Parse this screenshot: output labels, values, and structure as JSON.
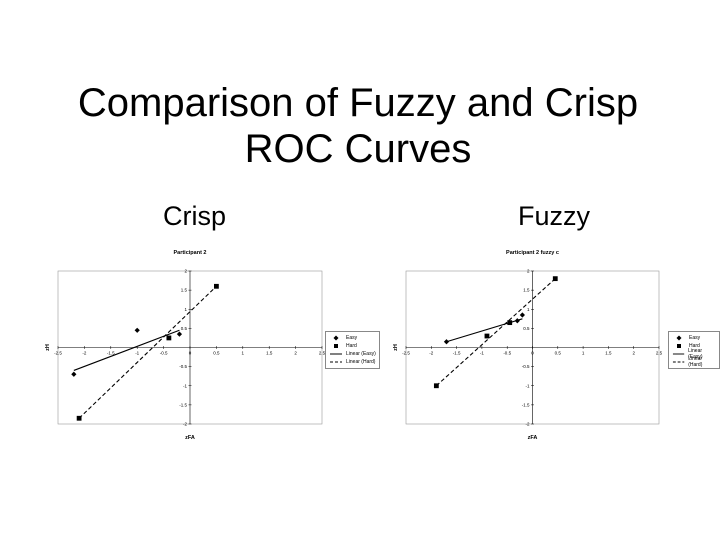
{
  "slide": {
    "title_line1": "Comparison of Fuzzy and Crisp",
    "title_line2": "ROC Curves",
    "col_left": "Crisp",
    "col_right": "Fuzzy"
  },
  "chart_data": [
    {
      "type": "scatter",
      "title": "Participant 2",
      "xlabel": "zFA",
      "ylabel": "zH",
      "xlim": [
        -2.5,
        2.5
      ],
      "ylim": [
        -2,
        2
      ],
      "x_ticks": [
        "-2.5",
        "-2",
        "-1.5",
        "-1",
        "-0.5",
        "0",
        "0.5",
        "1",
        "1.5",
        "2",
        "2.5"
      ],
      "y_ticks": [
        "-2",
        "-1.5",
        "-1",
        "-0.5",
        "0",
        "0.5",
        "1",
        "1.5",
        "2"
      ],
      "legend": {
        "position": "right",
        "entries": [
          "Easy",
          "Hard",
          "Linear (Easy)",
          "Linear (Hard)"
        ]
      },
      "series": [
        {
          "name": "Easy",
          "marker": "diamond",
          "x": [
            -2.2,
            -1.0,
            -0.2
          ],
          "y": [
            -0.7,
            0.45,
            0.35
          ]
        },
        {
          "name": "Hard",
          "marker": "square",
          "x": [
            -2.1,
            -0.4,
            0.5
          ],
          "y": [
            -1.85,
            0.25,
            1.6
          ]
        },
        {
          "name": "Linear (Easy)",
          "style": "solid",
          "x": [
            -2.2,
            -0.2
          ],
          "y": [
            -0.6,
            0.45
          ]
        },
        {
          "name": "Linear (Hard)",
          "style": "dashed",
          "x": [
            -2.1,
            0.5
          ],
          "y": [
            -1.85,
            1.6
          ]
        }
      ]
    },
    {
      "type": "scatter",
      "title": "Participant 2 fuzzy c",
      "xlabel": "zFA",
      "ylabel": "zH",
      "xlim": [
        -2.5,
        2.5
      ],
      "ylim": [
        -2,
        2
      ],
      "x_ticks": [
        "-2.5",
        "-2",
        "-1.5",
        "-1",
        "-0.5",
        "0",
        "0.5",
        "1",
        "1.5",
        "2",
        "2.5"
      ],
      "y_ticks": [
        "-2",
        "-1.5",
        "-1",
        "-0.5",
        "0",
        "0.5",
        "1",
        "1.5",
        "2"
      ],
      "legend": {
        "position": "right",
        "entries": [
          "Easy",
          "Hard",
          "Linear (Easy)",
          "Linear (Hard)"
        ]
      },
      "series": [
        {
          "name": "Easy",
          "marker": "diamond",
          "x": [
            -1.7,
            -0.3,
            -0.2
          ],
          "y": [
            0.15,
            0.7,
            0.85
          ]
        },
        {
          "name": "Hard",
          "marker": "square",
          "x": [
            -1.9,
            -0.9,
            -0.45,
            0.45
          ],
          "y": [
            -1.0,
            0.3,
            0.65,
            1.8
          ]
        },
        {
          "name": "Linear (Easy)",
          "style": "solid",
          "x": [
            -1.7,
            -0.2
          ],
          "y": [
            0.15,
            0.75
          ]
        },
        {
          "name": "Linear (Hard)",
          "style": "dashed",
          "x": [
            -1.9,
            0.45
          ],
          "y": [
            -1.0,
            1.8
          ]
        }
      ]
    }
  ],
  "colors": {
    "background": "#ffffff",
    "ink": "#000000",
    "grid": "#999999"
  }
}
